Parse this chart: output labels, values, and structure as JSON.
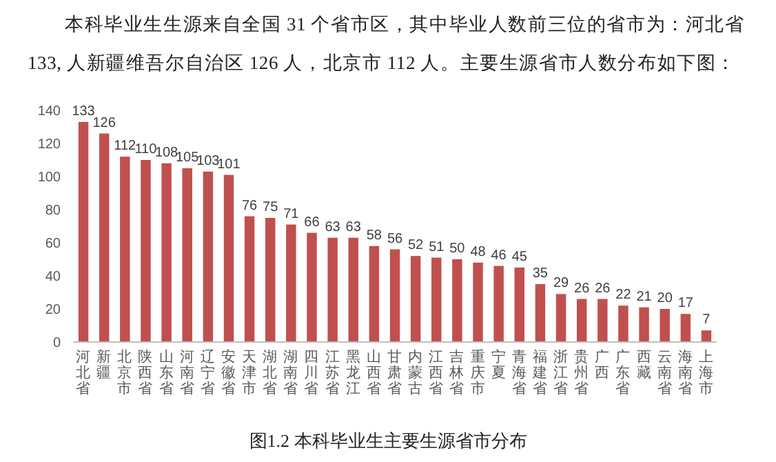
{
  "chart_data": {
    "type": "bar",
    "title": "本科毕业生生源来自全国 31 个省市区，其中毕业人数前三位的省市为：河北省 133, 人新疆维吾尔自治区 126 人，北京市 112 人。主要生源省市人数分布如下图：",
    "categories": [
      "河北省",
      "新疆",
      "北京市",
      "陕西省",
      "山东省",
      "河南省",
      "辽宁省",
      "安徽省",
      "天津市",
      "湖北省",
      "湖南省",
      "四川省",
      "江苏省",
      "黑龙江",
      "山西省",
      "甘肃省",
      "内蒙古",
      "江西省",
      "吉林省",
      "重庆市",
      "宁夏",
      "青海省",
      "福建省",
      "浙江省",
      "贵州省",
      "广西",
      "广东省",
      "西藏",
      "云南省",
      "海南省",
      "上海市"
    ],
    "values": [
      133,
      126,
      112,
      110,
      108,
      105,
      103,
      101,
      76,
      75,
      71,
      66,
      63,
      63,
      58,
      56,
      52,
      51,
      50,
      48,
      46,
      45,
      35,
      29,
      26,
      26,
      22,
      21,
      20,
      17,
      7
    ],
    "color": "#c0504d",
    "ylim": [
      0,
      140
    ],
    "yticks": [
      0,
      20,
      40,
      60,
      80,
      100,
      120,
      140
    ],
    "data_labels": true,
    "grid": false,
    "annotations": [
      "图1.2  本科毕业生主要生源省市分布"
    ]
  }
}
